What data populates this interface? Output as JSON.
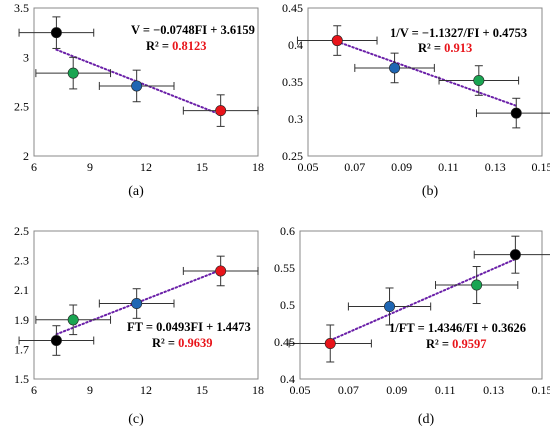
{
  "colors": {
    "red": "#e8141a",
    "green": "#1aa552",
    "blue": "#1f66b3",
    "black": "#000000",
    "trend": "#6a1fa8"
  },
  "chart_data": [
    {
      "type": "scatter",
      "panel_label": "(a)",
      "xlim": [
        6,
        18
      ],
      "ylim": [
        2,
        3.5
      ],
      "xticks": [
        "6",
        "9",
        "12",
        "15",
        "18"
      ],
      "yticks": [
        "2",
        "2.5",
        "3",
        "3.5"
      ],
      "equation": "V = −0.0748FI + 3.6159",
      "r2_label": "R² = ",
      "r2_value": "0.8123",
      "trend": {
        "slope": -0.0748,
        "intercept": 3.6159
      },
      "points": [
        {
          "color": "black",
          "x": 7.2,
          "y": 3.25,
          "xerr": 2.0,
          "yerr": 0.16
        },
        {
          "color": "green",
          "x": 8.1,
          "y": 2.84,
          "xerr": 2.0,
          "yerr": 0.16
        },
        {
          "color": "blue",
          "x": 11.5,
          "y": 2.71,
          "xerr": 2.0,
          "yerr": 0.16
        },
        {
          "color": "red",
          "x": 16.0,
          "y": 2.46,
          "xerr": 2.0,
          "yerr": 0.16
        }
      ]
    },
    {
      "type": "scatter",
      "panel_label": "(b)",
      "xlim": [
        0.05,
        0.15
      ],
      "ylim": [
        0.25,
        0.45
      ],
      "xticks": [
        "0.05",
        "0.07",
        "0.09",
        "0.11",
        "0.13",
        "0.15"
      ],
      "yticks": [
        "0.25",
        "0.3",
        "0.35",
        "0.4",
        "0.45"
      ],
      "equation": "1/V = −1.1327/FI + 0.4753",
      "r2_label": "R² = ",
      "r2_value": "0.913",
      "trend": {
        "slope": -1.1327,
        "intercept": 0.4753
      },
      "points": [
        {
          "color": "red",
          "x": 0.0625,
          "y": 0.406,
          "xerr": 0.017,
          "yerr": 0.02
        },
        {
          "color": "blue",
          "x": 0.087,
          "y": 0.369,
          "xerr": 0.017,
          "yerr": 0.02
        },
        {
          "color": "green",
          "x": 0.123,
          "y": 0.352,
          "xerr": 0.017,
          "yerr": 0.02
        },
        {
          "color": "black",
          "x": 0.139,
          "y": 0.308,
          "xerr": 0.017,
          "yerr": 0.02
        }
      ]
    },
    {
      "type": "scatter",
      "panel_label": "(c)",
      "xlim": [
        6,
        18
      ],
      "ylim": [
        1.5,
        2.5
      ],
      "xticks": [
        "6",
        "9",
        "12",
        "15",
        "18"
      ],
      "yticks": [
        "1.5",
        "1.7",
        "1.9",
        "2.1",
        "2.3",
        "2.5"
      ],
      "equation": "FT = 0.0493FI + 1.4473",
      "r2_label": "R² = ",
      "r2_value": "0.9639",
      "trend": {
        "slope": 0.0493,
        "intercept": 1.4473
      },
      "points": [
        {
          "color": "black",
          "x": 7.2,
          "y": 1.76,
          "xerr": 2.0,
          "yerr": 0.1
        },
        {
          "color": "green",
          "x": 8.1,
          "y": 1.9,
          "xerr": 2.0,
          "yerr": 0.1
        },
        {
          "color": "blue",
          "x": 11.5,
          "y": 2.01,
          "xerr": 2.0,
          "yerr": 0.1
        },
        {
          "color": "red",
          "x": 16.0,
          "y": 2.23,
          "xerr": 2.0,
          "yerr": 0.1
        }
      ]
    },
    {
      "type": "scatter",
      "panel_label": "(d)",
      "xlim": [
        0.05,
        0.15
      ],
      "ylim": [
        0.4,
        0.6
      ],
      "xticks": [
        "0.05",
        "0.07",
        "0.09",
        "0.11",
        "0.13",
        "0.15"
      ],
      "yticks": [
        "0.4",
        "0.45",
        "0.5",
        "0.55",
        "0.6"
      ],
      "equation": "1/FT = 1.4346/FI + 0.3626",
      "r2_label": "R² = ",
      "r2_value": "0.9597",
      "trend": {
        "slope": 1.4346,
        "intercept": 0.3626
      },
      "points": [
        {
          "color": "red",
          "x": 0.0625,
          "y": 0.448,
          "xerr": 0.017,
          "yerr": 0.025
        },
        {
          "color": "blue",
          "x": 0.087,
          "y": 0.498,
          "xerr": 0.017,
          "yerr": 0.025
        },
        {
          "color": "green",
          "x": 0.123,
          "y": 0.527,
          "xerr": 0.017,
          "yerr": 0.025
        },
        {
          "color": "black",
          "x": 0.139,
          "y": 0.568,
          "xerr": 0.017,
          "yerr": 0.025
        }
      ]
    }
  ]
}
